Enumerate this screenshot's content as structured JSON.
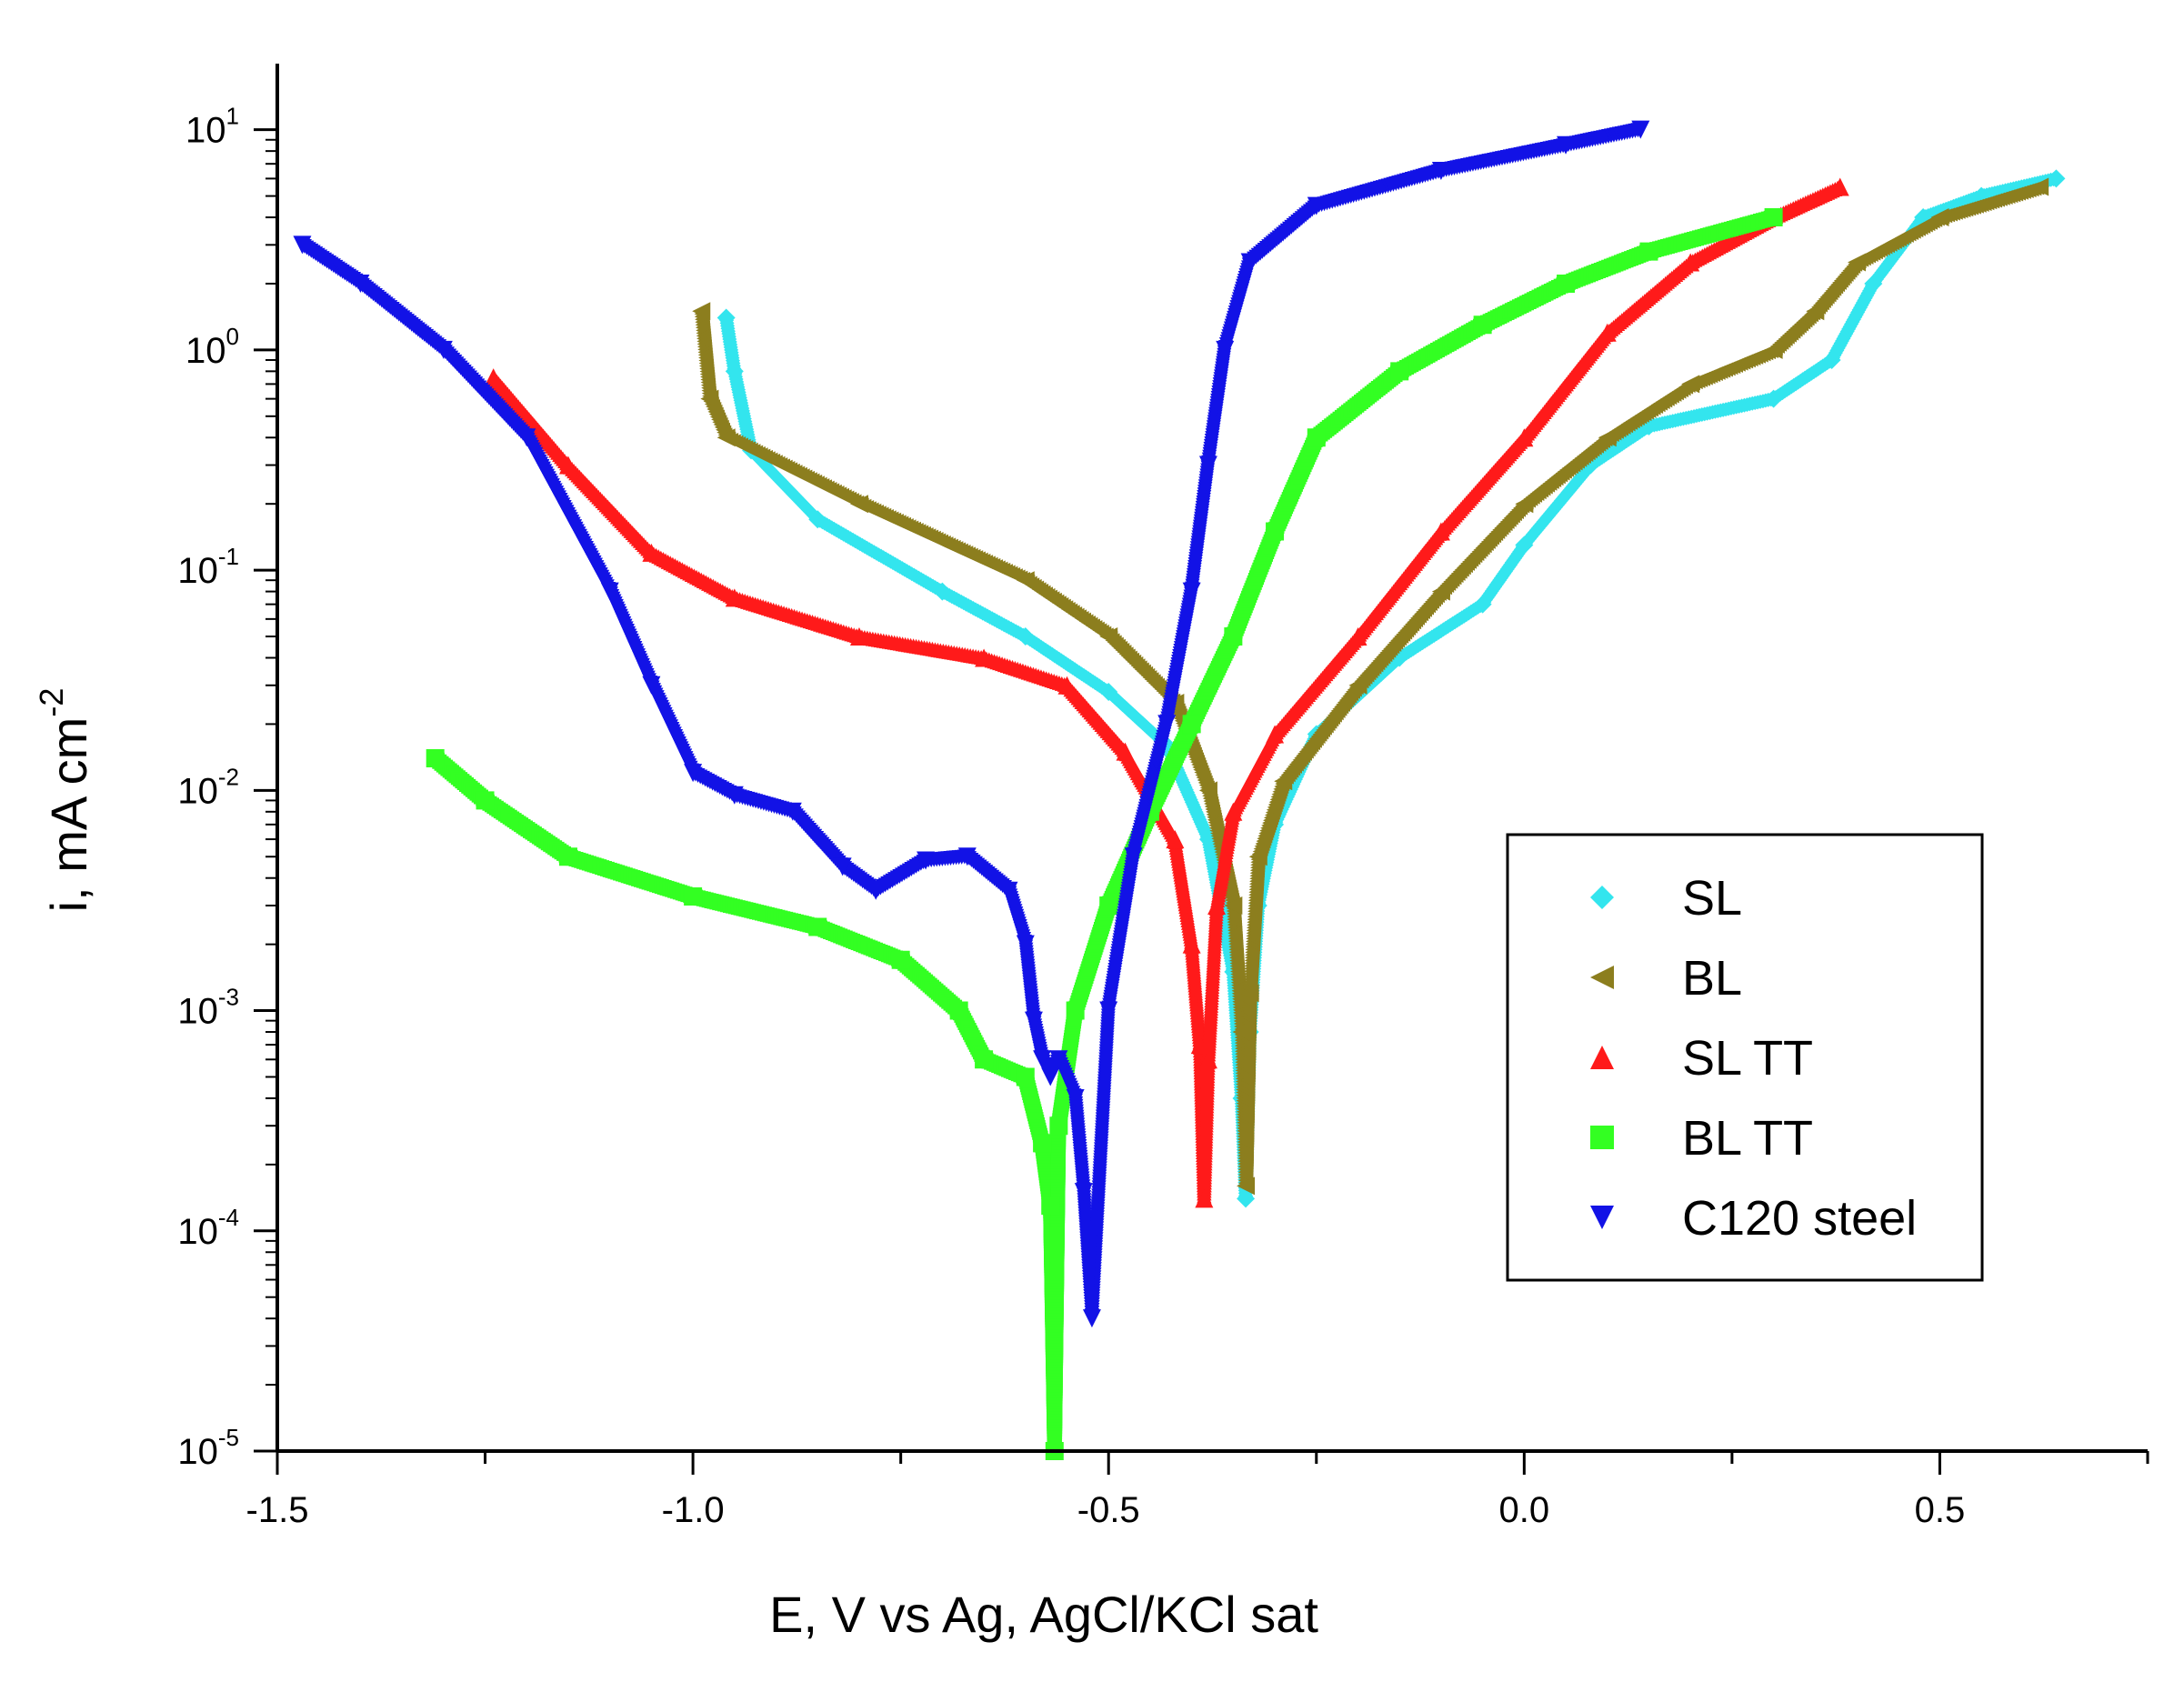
{
  "chart_data": {
    "type": "scatter",
    "title": "",
    "xlabel": "E, V vs Ag, AgCl/KCl sat",
    "ylabel_text": "i, mA cm",
    "ylabel_superscript": "-2",
    "xlim": [
      -1.5,
      0.75
    ],
    "ylim_log10": [
      -5,
      1.3
    ],
    "y_scale": "log",
    "x_ticks": [
      {
        "value": -1.5,
        "label": "-1.5"
      },
      {
        "value": -1.0,
        "label": "-1.0"
      },
      {
        "value": -0.5,
        "label": "-0.5"
      },
      {
        "value": 0.0,
        "label": "0.0"
      },
      {
        "value": 0.5,
        "label": "0.5"
      }
    ],
    "y_ticks": [
      {
        "exponent": 1,
        "base": "10",
        "sup": "1"
      },
      {
        "exponent": 0,
        "base": "10",
        "sup": "0"
      },
      {
        "exponent": -1,
        "base": "10",
        "sup": "-1"
      },
      {
        "exponent": -2,
        "base": "10",
        "sup": "-2"
      },
      {
        "exponent": -3,
        "base": "10",
        "sup": "-3"
      },
      {
        "exponent": -4,
        "base": "10",
        "sup": "-4"
      },
      {
        "exponent": -5,
        "base": "10",
        "sup": "-5"
      }
    ],
    "legend_position": "lower-right",
    "series": [
      {
        "name": "SL",
        "marker": "diamond",
        "color": "#33e5ee",
        "points": [
          [
            -0.96,
            1.4
          ],
          [
            -0.95,
            0.8
          ],
          [
            -0.93,
            0.35
          ],
          [
            -0.85,
            0.17
          ],
          [
            -0.7,
            0.08
          ],
          [
            -0.6,
            0.05
          ],
          [
            -0.5,
            0.028
          ],
          [
            -0.43,
            0.016
          ],
          [
            -0.38,
            0.006
          ],
          [
            -0.35,
            0.0015
          ],
          [
            -0.34,
            0.0004
          ],
          [
            -0.335,
            0.00014
          ],
          [
            -0.33,
            0.0008
          ],
          [
            -0.32,
            0.003
          ],
          [
            -0.3,
            0.007
          ],
          [
            -0.25,
            0.018
          ],
          [
            -0.15,
            0.04
          ],
          [
            -0.05,
            0.07
          ],
          [
            0.0,
            0.13
          ],
          [
            0.08,
            0.3
          ],
          [
            0.15,
            0.45
          ],
          [
            0.3,
            0.6
          ],
          [
            0.37,
            0.9
          ],
          [
            0.42,
            2.0
          ],
          [
            0.48,
            4.0
          ],
          [
            0.55,
            5.0
          ],
          [
            0.64,
            6.0
          ]
        ]
      },
      {
        "name": "BL",
        "marker": "triangle-left",
        "color": "#8c7e1e",
        "points": [
          [
            -0.99,
            1.5
          ],
          [
            -0.98,
            0.6
          ],
          [
            -0.96,
            0.4
          ],
          [
            -0.8,
            0.2
          ],
          [
            -0.6,
            0.09
          ],
          [
            -0.5,
            0.05
          ],
          [
            -0.42,
            0.025
          ],
          [
            -0.38,
            0.01
          ],
          [
            -0.35,
            0.003
          ],
          [
            -0.34,
            0.0008
          ],
          [
            -0.335,
            0.00016
          ],
          [
            -0.33,
            0.0012
          ],
          [
            -0.32,
            0.005
          ],
          [
            -0.29,
            0.011
          ],
          [
            -0.2,
            0.03
          ],
          [
            -0.1,
            0.08
          ],
          [
            0.0,
            0.2
          ],
          [
            0.1,
            0.4
          ],
          [
            0.2,
            0.7
          ],
          [
            0.3,
            1.0
          ],
          [
            0.35,
            1.5
          ],
          [
            0.4,
            2.5
          ],
          [
            0.5,
            4.0
          ],
          [
            0.62,
            5.5
          ]
        ]
      },
      {
        "name": "SL TT",
        "marker": "triangle-up",
        "color": "#ff1a1a",
        "points": [
          [
            -1.24,
            0.75
          ],
          [
            -1.15,
            0.3
          ],
          [
            -1.05,
            0.12
          ],
          [
            -0.95,
            0.075
          ],
          [
            -0.8,
            0.05
          ],
          [
            -0.65,
            0.04
          ],
          [
            -0.55,
            0.03
          ],
          [
            -0.48,
            0.015
          ],
          [
            -0.42,
            0.006
          ],
          [
            -0.4,
            0.002
          ],
          [
            -0.39,
            0.0007
          ],
          [
            -0.385,
            0.00014
          ],
          [
            -0.38,
            0.0006
          ],
          [
            -0.37,
            0.003
          ],
          [
            -0.35,
            0.008
          ],
          [
            -0.3,
            0.018
          ],
          [
            -0.2,
            0.05
          ],
          [
            -0.1,
            0.15
          ],
          [
            0.0,
            0.4
          ],
          [
            0.1,
            1.2
          ],
          [
            0.2,
            2.5
          ],
          [
            0.3,
            4.0
          ],
          [
            0.38,
            5.5
          ]
        ]
      },
      {
        "name": "BL TT",
        "marker": "square",
        "color": "#33ff22",
        "points": [
          [
            -1.31,
            0.014
          ],
          [
            -1.25,
            0.009
          ],
          [
            -1.15,
            0.005
          ],
          [
            -1.0,
            0.0033
          ],
          [
            -0.85,
            0.0024
          ],
          [
            -0.75,
            0.0017
          ],
          [
            -0.68,
            0.001
          ],
          [
            -0.65,
            0.0006
          ],
          [
            -0.6,
            0.0005
          ],
          [
            -0.58,
            0.00025
          ],
          [
            -0.57,
            0.00013
          ],
          [
            -0.565,
            1e-05
          ],
          [
            -0.56,
            0.0003
          ],
          [
            -0.54,
            0.001
          ],
          [
            -0.5,
            0.003
          ],
          [
            -0.45,
            0.008
          ],
          [
            -0.4,
            0.02
          ],
          [
            -0.35,
            0.05
          ],
          [
            -0.3,
            0.15
          ],
          [
            -0.25,
            0.4
          ],
          [
            -0.15,
            0.8
          ],
          [
            -0.05,
            1.3
          ],
          [
            0.05,
            2.0
          ],
          [
            0.15,
            2.8
          ],
          [
            0.3,
            4.0
          ]
        ]
      },
      {
        "name": "C120 steel",
        "marker": "triangle-down",
        "color": "#1212e6",
        "points": [
          [
            -1.47,
            3.0
          ],
          [
            -1.4,
            2.0
          ],
          [
            -1.3,
            1.0
          ],
          [
            -1.2,
            0.4
          ],
          [
            -1.1,
            0.08
          ],
          [
            -1.05,
            0.03
          ],
          [
            -1.0,
            0.012
          ],
          [
            -0.95,
            0.0095
          ],
          [
            -0.88,
            0.008
          ],
          [
            -0.82,
            0.0045
          ],
          [
            -0.78,
            0.0035
          ],
          [
            -0.72,
            0.0048
          ],
          [
            -0.67,
            0.005
          ],
          [
            -0.62,
            0.0035
          ],
          [
            -0.6,
            0.002
          ],
          [
            -0.59,
            0.0009
          ],
          [
            -0.58,
            0.0006
          ],
          [
            -0.57,
            0.0005
          ],
          [
            -0.56,
            0.0006
          ],
          [
            -0.54,
            0.0004
          ],
          [
            -0.53,
            0.00015
          ],
          [
            -0.52,
            4e-05
          ],
          [
            -0.5,
            0.001
          ],
          [
            -0.47,
            0.005
          ],
          [
            -0.43,
            0.02
          ],
          [
            -0.4,
            0.08
          ],
          [
            -0.38,
            0.3
          ],
          [
            -0.36,
            1.0
          ],
          [
            -0.33,
            2.5
          ],
          [
            -0.25,
            4.5
          ],
          [
            -0.1,
            6.5
          ],
          [
            0.05,
            8.5
          ],
          [
            0.14,
            10.0
          ]
        ]
      }
    ]
  }
}
